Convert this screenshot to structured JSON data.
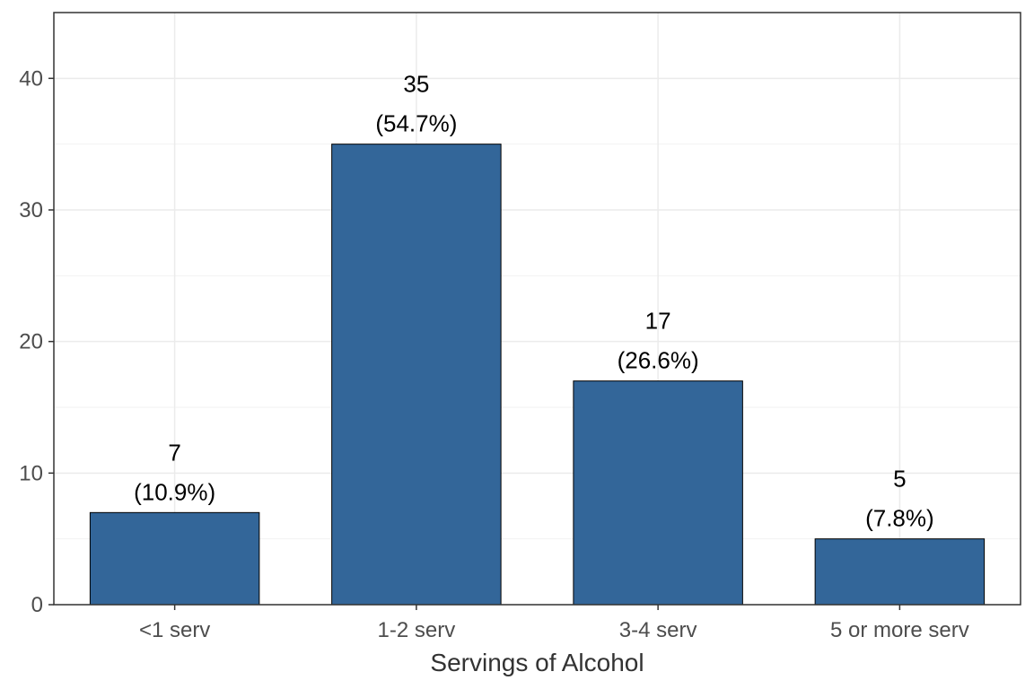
{
  "chart_data": {
    "type": "bar",
    "title": "",
    "xlabel": "Servings of Alcohol",
    "ylabel": "",
    "categories": [
      "<1 serv",
      "1-2 serv",
      "3-4 serv",
      "5 or more serv"
    ],
    "values": [
      7,
      35,
      17,
      5
    ],
    "value_labels": [
      "7",
      "35",
      "17",
      "5"
    ],
    "percent_labels": [
      "(10.9%)",
      "(54.7%)",
      "(26.6%)",
      "(7.8%)"
    ],
    "ylim": [
      0,
      45
    ],
    "yticks": [
      0,
      10,
      20,
      30,
      40
    ],
    "ytick_labels": [
      "0",
      "10",
      "20",
      "30",
      "40"
    ],
    "grid": true,
    "legend": "none",
    "colors": {
      "bar_fill": "#336699",
      "bar_stroke": "#000000",
      "grid_major": "#ebebeb",
      "grid_minor": "#f2f2f2",
      "panel_border": "#333333",
      "tick_mark": "#333333"
    }
  }
}
